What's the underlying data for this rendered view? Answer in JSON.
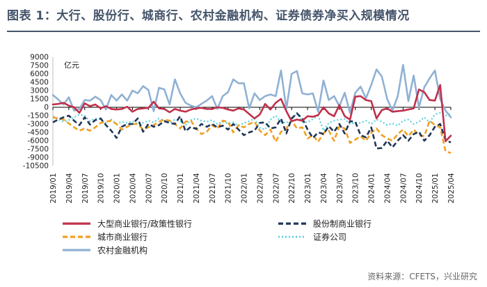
{
  "title": "图表 1：大行、股份行、城商行、农村金融机构、证券债券净买入规模情况",
  "source": "资料来源：CFETS，兴业研究",
  "chart_data": {
    "type": "line",
    "unit": "亿元",
    "ylim": [
      -10500,
      9000
    ],
    "yticks": [
      9000,
      7500,
      6000,
      4500,
      3000,
      1500,
      0,
      -1500,
      -3000,
      -4500,
      -6000,
      -7500,
      -9000,
      -10500
    ],
    "x_start": "2019/01",
    "n_periods": 76,
    "xtick_labels": [
      "2019/01",
      "2019/04",
      "2019/07",
      "2019/10",
      "2020/01",
      "2020/04",
      "2020/07",
      "2020/10",
      "2021/01",
      "2021/04",
      "2021/07",
      "2021/10",
      "2022/01",
      "2022/04",
      "2022/07",
      "2022/10",
      "2023/01",
      "2023/04",
      "2023/07",
      "2023/10",
      "2024/01",
      "2024/04",
      "2024/07",
      "2024/10",
      "2025/01",
      "2025/04"
    ],
    "legend_position": "bottom",
    "series": [
      {
        "name": "大型商业银行/政策性银行",
        "color": "#c0304a",
        "style": "solid",
        "values": [
          500,
          600,
          800,
          300,
          0,
          -1000,
          700,
          200,
          500,
          -200,
          200,
          -300,
          -400,
          -300,
          100,
          -800,
          -300,
          -200,
          -100,
          1000,
          -200,
          -300,
          -900,
          -300,
          -600,
          -800,
          -400,
          -200,
          -100,
          -300,
          -300,
          0,
          -100,
          -400,
          -600,
          -200,
          -400,
          -1200,
          -2000,
          -1300,
          600,
          -400,
          800,
          1500,
          -700,
          -2500,
          -2200,
          -2400,
          -1600,
          -1700,
          -1400,
          0,
          -1100,
          -1600,
          400,
          -1600,
          -2200,
          1900,
          2000,
          1300,
          1100,
          -2000,
          -500,
          -200,
          -800,
          -700,
          -600,
          -400,
          -200,
          3200,
          2700,
          1300,
          1200,
          4000,
          -6100,
          -5100
        ]
      },
      {
        "name": "股份制商业银行",
        "color": "#1f3557",
        "style": "dash",
        "values": [
          -2700,
          -2200,
          -1800,
          -1500,
          -2400,
          -3200,
          -1800,
          -3100,
          -2300,
          -2000,
          -3200,
          -4200,
          -5500,
          -3500,
          -3000,
          -3000,
          -2000,
          -4400,
          -3000,
          -3500,
          -3200,
          -2500,
          -2800,
          -3000,
          -1600,
          -4300,
          -3500,
          -3900,
          -3000,
          -3500,
          -3000,
          -3600,
          -3300,
          -4000,
          -3000,
          -4000,
          -5000,
          -4500,
          -4200,
          -2800,
          -2700,
          -3800,
          -3600,
          -2000,
          -4700,
          -2000,
          -1100,
          -2000,
          -4000,
          -5500,
          -4500,
          -4800,
          -3400,
          -4400,
          -3000,
          -4700,
          -2500,
          -2600,
          -5000,
          -5400,
          -3600,
          -7400,
          -7300,
          -6000,
          -7200,
          -6000,
          -5000,
          -6000,
          -4800,
          -4400,
          -6000,
          -5000,
          -3500,
          -3000,
          -5900,
          -6300
        ]
      },
      {
        "name": "城市商业银行",
        "color": "#f0a020",
        "style": "dash",
        "values": [
          -1800,
          -2000,
          -2200,
          -2900,
          -3600,
          -4200,
          -3800,
          -4200,
          -3600,
          -2800,
          -2600,
          -2400,
          -3000,
          -4000,
          -3500,
          -3000,
          -3000,
          -4000,
          -3600,
          -3200,
          -2600,
          -2200,
          -2400,
          -3000,
          -3800,
          -2600,
          -2400,
          -3800,
          -4800,
          -4400,
          -3200,
          -3800,
          -2400,
          -2600,
          -4500,
          -3200,
          -3600,
          -3000,
          -2600,
          -4200,
          -5000,
          -4000,
          -6200,
          -4400,
          -3800,
          -2400,
          -3800,
          -3600,
          -5600,
          -5000,
          -6200,
          -4600,
          -4200,
          -6000,
          -3400,
          -3800,
          -6400,
          -5800,
          -5200,
          -6000,
          -4600,
          -3800,
          -5000,
          -5600,
          -6000,
          -4800,
          -4000,
          -5200,
          -4000,
          -5000,
          -5200,
          -2400,
          -3200,
          -3600,
          -7900,
          -8200
        ]
      },
      {
        "name": "证券公司",
        "color": "#5ad0dc",
        "style": "dot",
        "values": [
          -1600,
          -2200,
          -2600,
          -2300,
          -1800,
          -1300,
          -1500,
          -2500,
          -2000,
          -2200,
          -2800,
          -2200,
          -3000,
          -2600,
          -2800,
          -2500,
          -3000,
          -2800,
          -2400,
          -2700,
          -2000,
          -2400,
          -2800,
          -2200,
          -2500,
          -3200,
          -2300,
          -2000,
          -2400,
          -2600,
          -2300,
          -3000,
          -2600,
          -2900,
          -2700,
          -3300,
          -2800,
          -2500,
          -2000,
          -3700,
          -4000,
          -2200,
          -1500,
          -2600,
          -2800,
          -2300,
          -1000,
          -2600,
          -2700,
          -2100,
          -1500,
          -4200,
          -2800,
          -2400,
          -2200,
          -2100,
          -3000,
          -2800,
          -2800,
          -2400,
          -3000,
          -2200,
          -2600,
          -3200,
          -2900,
          -3300,
          -2400,
          -2200,
          -3000,
          -2600,
          -1800,
          -2700,
          -1300,
          -1000,
          -1500,
          -1200
        ]
      },
      {
        "name": "农村金融机构",
        "color": "#8fb1d4",
        "style": "solid",
        "values": [
          2200,
          1400,
          500,
          1800,
          -600,
          -300,
          1300,
          1200,
          1900,
          1300,
          -400,
          2200,
          1200,
          2300,
          1200,
          3000,
          2500,
          3800,
          3100,
          -700,
          3500,
          3200,
          500,
          5000,
          2500,
          800,
          300,
          0,
          600,
          1200,
          2000,
          -300,
          2000,
          2700,
          5000,
          4300,
          4300,
          -200,
          2500,
          1300,
          2000,
          2300,
          2000,
          6600,
          -300,
          6000,
          6500,
          2500,
          2300,
          2500,
          -800,
          4800,
          1300,
          2000,
          200,
          2600,
          -1000,
          2600,
          3700,
          1600,
          4000,
          6800,
          5500,
          1500,
          -600,
          2000,
          7600,
          1100,
          5700,
          0,
          3600,
          5200,
          6600,
          1500,
          -600,
          -1800
        ]
      }
    ]
  }
}
